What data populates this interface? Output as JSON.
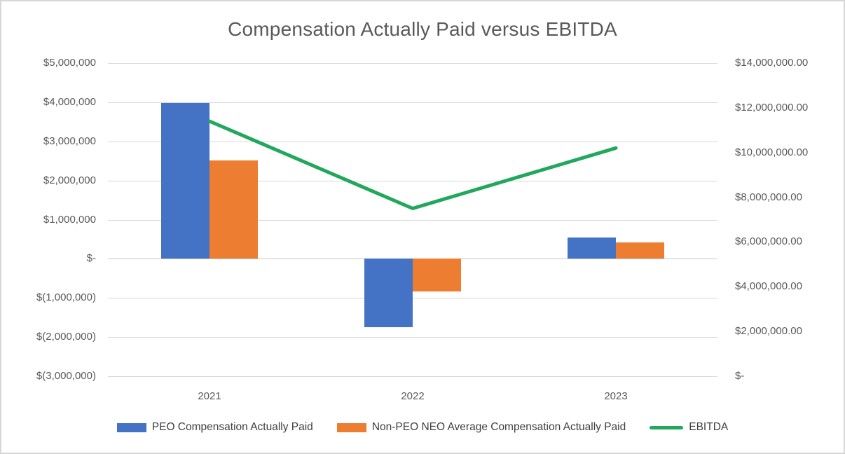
{
  "title": "Compensation Actually Paid versus EBITDA",
  "chart_data": {
    "type": "combo",
    "categories": [
      "2021",
      "2022",
      "2023"
    ],
    "series": [
      {
        "key": "peo",
        "name": "PEO Compensation Actually Paid",
        "chart": "bar",
        "axis": "left",
        "color": "#4472C4",
        "values": [
          3980000,
          -1740000,
          550000
        ]
      },
      {
        "key": "non-peo-neo",
        "name": "Non-PEO NEO Average Compensation Actually Paid",
        "chart": "bar",
        "axis": "left",
        "color": "#ED7D31",
        "values": [
          2520000,
          -830000,
          420000
        ]
      },
      {
        "key": "ebitda",
        "name": "EBITDA",
        "chart": "line",
        "axis": "right",
        "color": "#22A75C",
        "values": [
          11400000,
          7500000,
          10200000
        ]
      }
    ],
    "left_axis": {
      "min": -3000000,
      "max": 5000000,
      "tick_step": 1000000,
      "ticks": [
        "$5,000,000",
        "$4,000,000",
        "$3,000,000",
        "$2,000,000",
        "$1,000,000",
        "$-",
        "$(1,000,000)",
        "$(2,000,000)",
        "$(3,000,000)"
      ]
    },
    "right_axis": {
      "min": 0,
      "max": 14000000,
      "tick_step": 2000000,
      "ticks": [
        "$14,000,000.00",
        "$12,000,000.00",
        "$10,000,000.00",
        "$8,000,000.00",
        "$6,000,000.00",
        "$4,000,000.00",
        "$2,000,000.00",
        "$-"
      ]
    },
    "grid": true,
    "legend_position": "bottom"
  }
}
